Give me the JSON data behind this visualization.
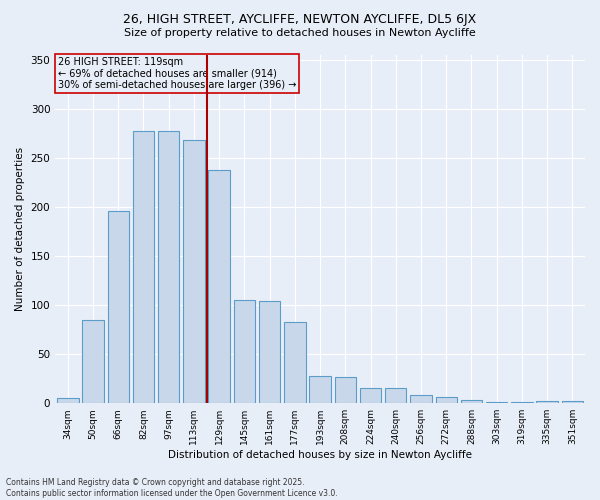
{
  "title1": "26, HIGH STREET, AYCLIFFE, NEWTON AYCLIFFE, DL5 6JX",
  "title2": "Size of property relative to detached houses in Newton Aycliffe",
  "xlabel": "Distribution of detached houses by size in Newton Aycliffe",
  "ylabel": "Number of detached properties",
  "categories": [
    "34sqm",
    "50sqm",
    "66sqm",
    "82sqm",
    "97sqm",
    "113sqm",
    "129sqm",
    "145sqm",
    "161sqm",
    "177sqm",
    "193sqm",
    "208sqm",
    "224sqm",
    "240sqm",
    "256sqm",
    "272sqm",
    "288sqm",
    "303sqm",
    "319sqm",
    "335sqm",
    "351sqm"
  ],
  "values": [
    5,
    85,
    196,
    278,
    278,
    268,
    238,
    105,
    104,
    83,
    28,
    27,
    16,
    15,
    8,
    6,
    3,
    1,
    1,
    2,
    2
  ],
  "bar_color": "#c8d8ea",
  "bar_edge_color": "#5b9dc8",
  "marker_bin_index": 6,
  "marker_color": "#aa0000",
  "annotation_title": "26 HIGH STREET: 119sqm",
  "annotation_line1": "← 69% of detached houses are smaller (914)",
  "annotation_line2": "30% of semi-detached houses are larger (396) →",
  "annotation_box_color": "#cc0000",
  "ylim": [
    0,
    355
  ],
  "yticks": [
    0,
    50,
    100,
    150,
    200,
    250,
    300,
    350
  ],
  "bg_color": "#e8eef8",
  "grid_color": "#ffffff",
  "footer1": "Contains HM Land Registry data © Crown copyright and database right 2025.",
  "footer2": "Contains public sector information licensed under the Open Government Licence v3.0."
}
